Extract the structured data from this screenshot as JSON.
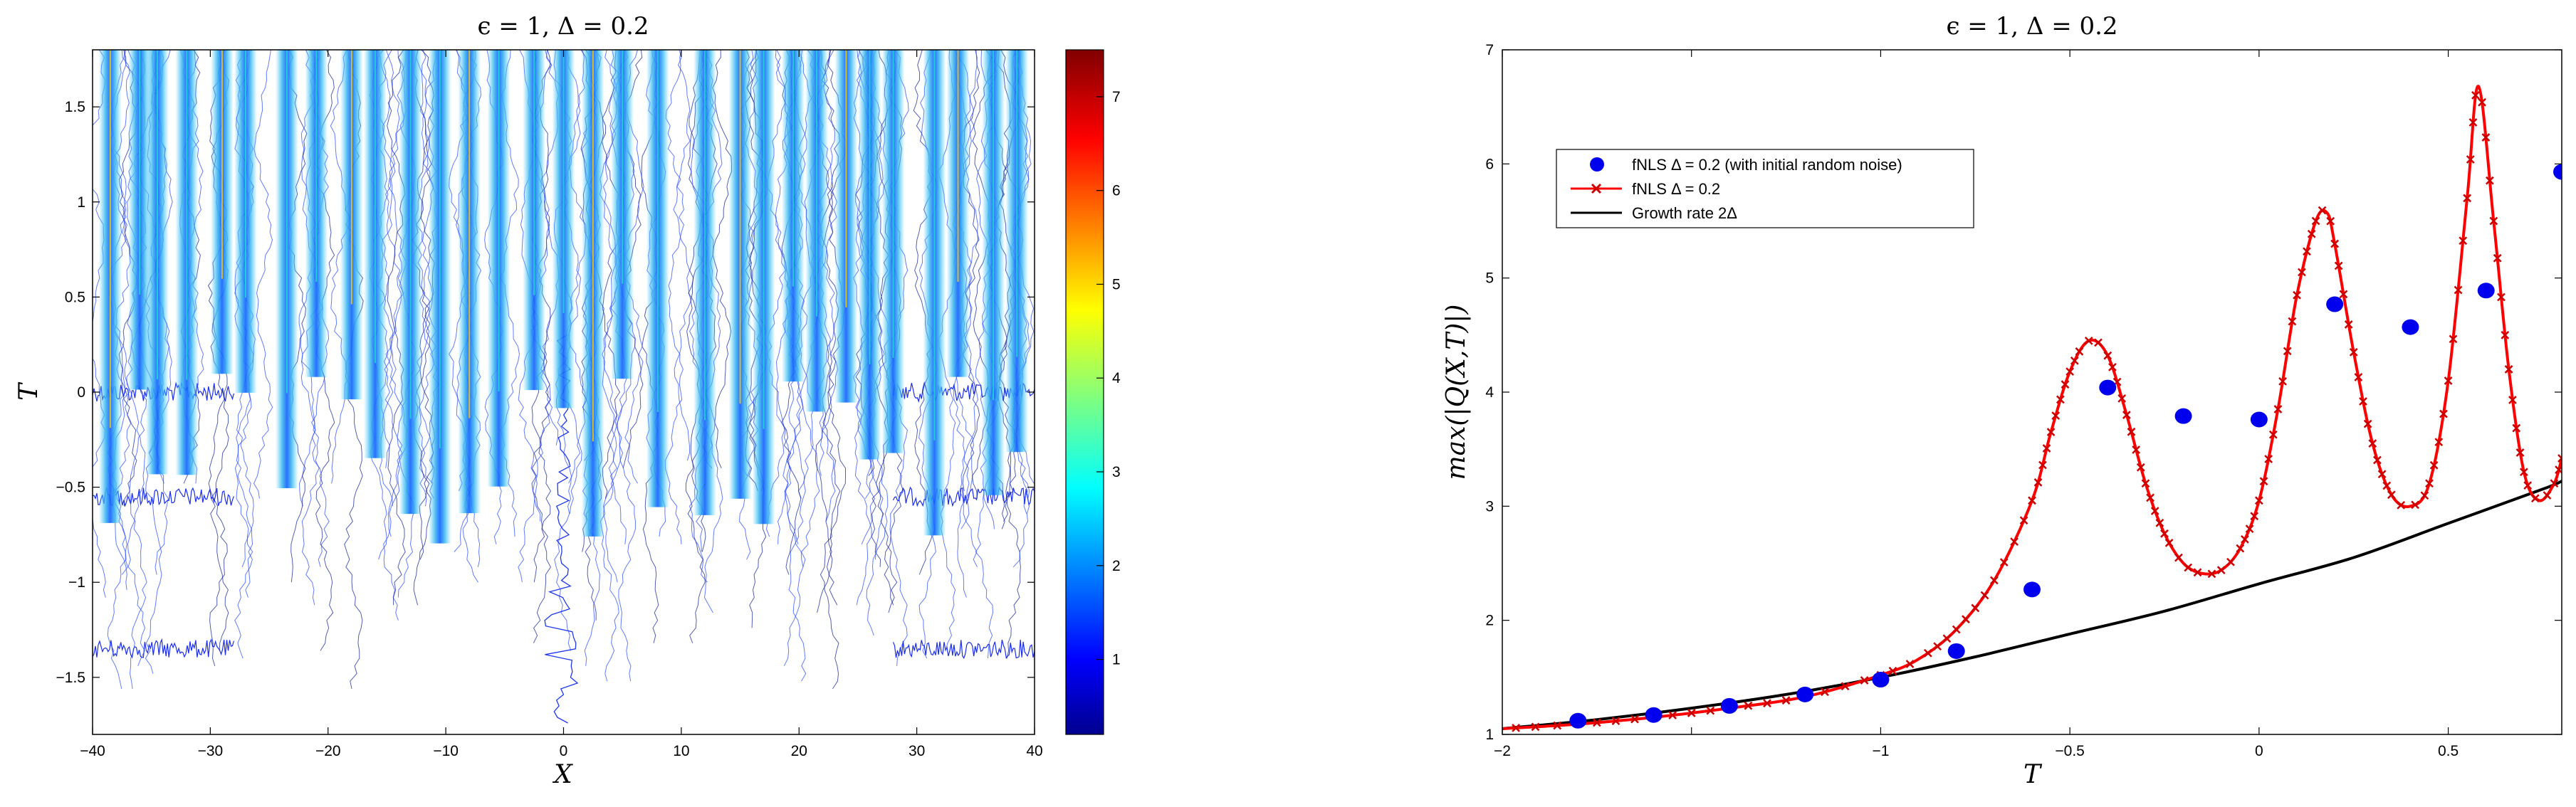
{
  "chart_data": [
    {
      "type": "heatmap",
      "title": "ϵ = 1, Δ = 0.2",
      "xlabel": "X",
      "ylabel": "T",
      "xlim": [
        -40,
        40
      ],
      "ylim": [
        -1.8,
        1.8
      ],
      "xticks": [
        -40,
        -30,
        -20,
        -10,
        0,
        10,
        20,
        30,
        40
      ],
      "xtick_labels": [
        "−40",
        "−30",
        "−20",
        "−10",
        "0",
        "10",
        "20",
        "30",
        "40"
      ],
      "yticks": [
        -1.5,
        -1,
        -0.5,
        0,
        0.5,
        1,
        1.5
      ],
      "ytick_labels": [
        "−1.5",
        "−1",
        "−0.5",
        "0",
        "0.5",
        "1",
        "1.5"
      ],
      "colorbar": {
        "range": [
          0.2,
          7.5
        ],
        "ticks": [
          1,
          2,
          3,
          4,
          5,
          6,
          7
        ],
        "tick_labels": [
          "1",
          "2",
          "3",
          "4",
          "5",
          "6",
          "7"
        ],
        "colormap": "jet"
      },
      "peak_filaments_x": [
        -38.5,
        -36,
        -34.5,
        -32,
        -29,
        -27,
        -23.5,
        -21,
        -18,
        -16,
        -13,
        -10.5,
        -8,
        -5.5,
        -2.5,
        0,
        2.5,
        5,
        8,
        12,
        15,
        17,
        19.5,
        21.5,
        24,
        26,
        28,
        31.5,
        33.5,
        36.5,
        38.5
      ],
      "noise_bands_T": [
        0,
        -0.55,
        -1.35
      ],
      "noise_bands_extent": [
        [
          -40,
          -28
        ],
        [
          28,
          40
        ]
      ]
    },
    {
      "type": "line",
      "title": "ϵ = 1, Δ = 0.2",
      "xlabel": "T",
      "ylabel": "max(|Q(X,T)|)",
      "xlim": [
        -2,
        0.8
      ],
      "ylim": [
        1,
        7
      ],
      "xticks": [
        -2,
        -1.5,
        -1,
        -0.5,
        0,
        0.5
      ],
      "xtick_labels": [
        "−2",
        "",
        "−1",
        "−0.5",
        "0",
        "0.5"
      ],
      "yticks": [
        1,
        2,
        3,
        4,
        5,
        6,
        7
      ],
      "ytick_labels": [
        "1",
        "2",
        "3",
        "4",
        "5",
        "6",
        "7"
      ],
      "legend_position": "upper-left",
      "series": [
        {
          "name": "fNLS Δ = 0.2 (with initial random noise)",
          "style": "blue-dots",
          "color": "#0000ee",
          "x": [
            -1.8,
            -1.6,
            -1.4,
            -1.2,
            -1.0,
            -0.8,
            -0.6,
            -0.4,
            -0.2,
            0.0,
            0.2,
            0.4,
            0.6,
            0.8
          ],
          "y": [
            1.12,
            1.17,
            1.25,
            1.35,
            1.48,
            1.73,
            2.27,
            4.04,
            3.79,
            3.76,
            4.77,
            4.57,
            4.89,
            5.93
          ]
        },
        {
          "name": "fNLS Δ = 0.2",
          "style": "red-line-x-markers",
          "color": "#ff0000",
          "x": [
            -2.0,
            -1.8,
            -1.6,
            -1.4,
            -1.2,
            -1.0,
            -0.9,
            -0.8,
            -0.7,
            -0.6,
            -0.55,
            -0.5,
            -0.45,
            -0.4,
            -0.35,
            -0.3,
            -0.25,
            -0.2,
            -0.15,
            -0.1,
            -0.05,
            0.0,
            0.05,
            0.1,
            0.15,
            0.18,
            0.2,
            0.25,
            0.3,
            0.35,
            0.4,
            0.45,
            0.5,
            0.55,
            0.58,
            0.62,
            0.66,
            0.7,
            0.74,
            0.78,
            0.8
          ],
          "y": [
            1.05,
            1.09,
            1.15,
            1.23,
            1.33,
            1.52,
            1.66,
            1.92,
            2.35,
            3.05,
            3.65,
            4.18,
            4.45,
            4.32,
            3.8,
            3.2,
            2.76,
            2.5,
            2.41,
            2.44,
            2.63,
            3.05,
            3.85,
            4.85,
            5.5,
            5.57,
            5.3,
            4.35,
            3.55,
            3.1,
            3.0,
            3.2,
            4.1,
            5.7,
            6.68,
            5.5,
            4.2,
            3.3,
            3.05,
            3.2,
            3.42
          ]
        },
        {
          "name": "Growth rate 2Δ",
          "style": "black-line",
          "color": "#000000",
          "x": [
            -2.0,
            -1.75,
            -1.5,
            -1.25,
            -1.0,
            -0.75,
            -0.5,
            -0.25,
            0.0,
            0.25,
            0.5,
            0.75,
            0.8
          ],
          "y": [
            1.05,
            1.13,
            1.23,
            1.35,
            1.5,
            1.68,
            1.88,
            2.08,
            2.32,
            2.55,
            2.85,
            3.15,
            3.22
          ]
        }
      ]
    }
  ]
}
